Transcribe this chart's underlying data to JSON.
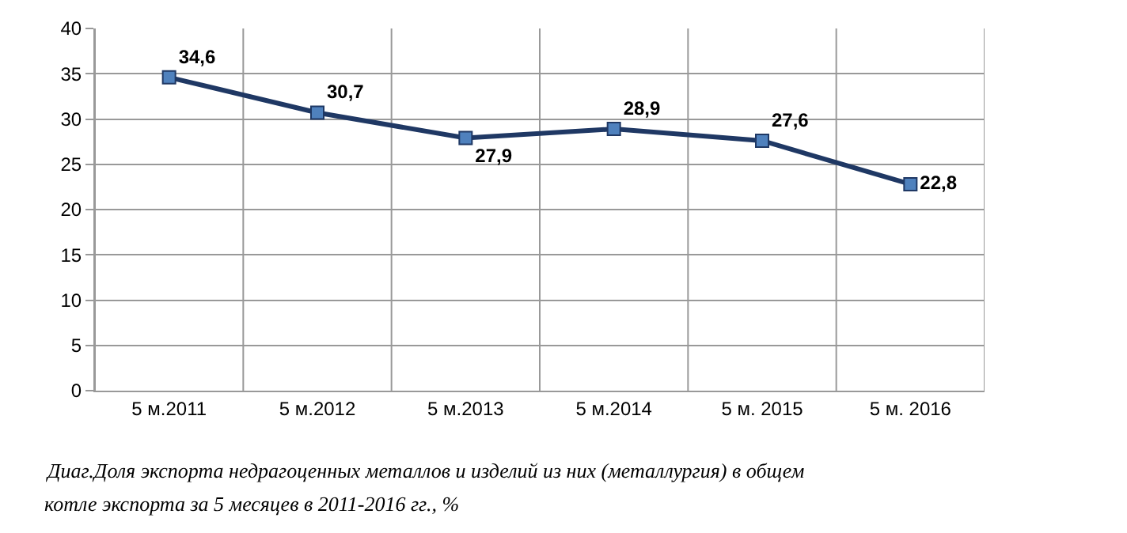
{
  "chart_data": {
    "type": "line",
    "categories": [
      "5 м.2011",
      "5 м.2012",
      "5 м.2013",
      "5 м.2014",
      "5 м. 2015",
      "5 м. 2016"
    ],
    "series": [
      {
        "color": "#1f3864",
        "values": [
          34.6,
          30.7,
          27.9,
          28.9,
          27.6,
          22.8
        ],
        "value_labels": [
          "34,6",
          "30,7",
          "27,9",
          "28,9",
          "27,6",
          "22,8"
        ]
      }
    ],
    "ylim": [
      0,
      40
    ],
    "yticks": [
      0,
      5,
      10,
      15,
      20,
      25,
      30,
      35,
      40
    ],
    "grid": true,
    "marker": "square",
    "line_style": "solid",
    "annotations": [
      "Диаг.Доля экспорта недрагоценных металлов и изделий из них (металлургия) в общем",
      "котле экспорта за 5 месяцев в 2011-2016 гг., %"
    ]
  }
}
